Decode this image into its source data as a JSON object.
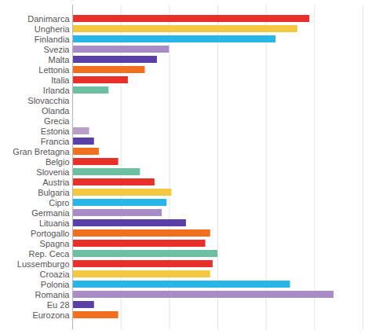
{
  "chart_data": {
    "type": "bar",
    "orientation": "horizontal",
    "categories": [
      "Danimarca",
      "Ungheria",
      "Finlandia",
      "Svezia",
      "Malta",
      "Lettonia",
      "Italia",
      "Irlanda",
      "Slovacchia",
      "Olanda",
      "Grecia",
      "Estonia",
      "Francia",
      "Gran Bretagna",
      "Belgio",
      "Slovenia",
      "Austria",
      "Bulgaria",
      "Cipro",
      "Germania",
      "Lituania",
      "Portogallo",
      "Spagna",
      "Rep. Ceca",
      "Lussemburgo",
      "Croazia",
      "Polonia",
      "Romania",
      "Eu 28",
      "Eurozona"
    ],
    "values": [
      9.8,
      9.3,
      8.4,
      4.0,
      3.5,
      3.0,
      2.3,
      1.5,
      0.0,
      0.0,
      0.0,
      0.7,
      0.9,
      1.1,
      1.9,
      2.8,
      3.4,
      4.1,
      3.9,
      3.7,
      4.7,
      5.7,
      5.5,
      6.0,
      5.8,
      5.7,
      9.0,
      10.8,
      0.9,
      1.9
    ],
    "colors": [
      "#e8302a",
      "#f5c842",
      "#29b5e8",
      "#a78cc8",
      "#5b3fa8",
      "#f07020",
      "#e8302a",
      "#6cbfa0",
      "#ffffff",
      "#ffffff",
      "#ffffff",
      "#b8a0c8",
      "#5b3fa8",
      "#f07020",
      "#e8302a",
      "#6cbfa0",
      "#e8302a",
      "#f5c842",
      "#29b5e8",
      "#a78cc8",
      "#5b3fa8",
      "#f07020",
      "#e8302a",
      "#6cbfa0",
      "#e8302a",
      "#f5c842",
      "#29b5e8",
      "#a78cc8",
      "#5b3fa8",
      "#f07020"
    ],
    "xlim": [
      0,
      12
    ],
    "xticks": [
      0,
      2,
      4,
      6,
      8,
      10,
      12
    ],
    "grid": true,
    "tick_labels": "y"
  }
}
